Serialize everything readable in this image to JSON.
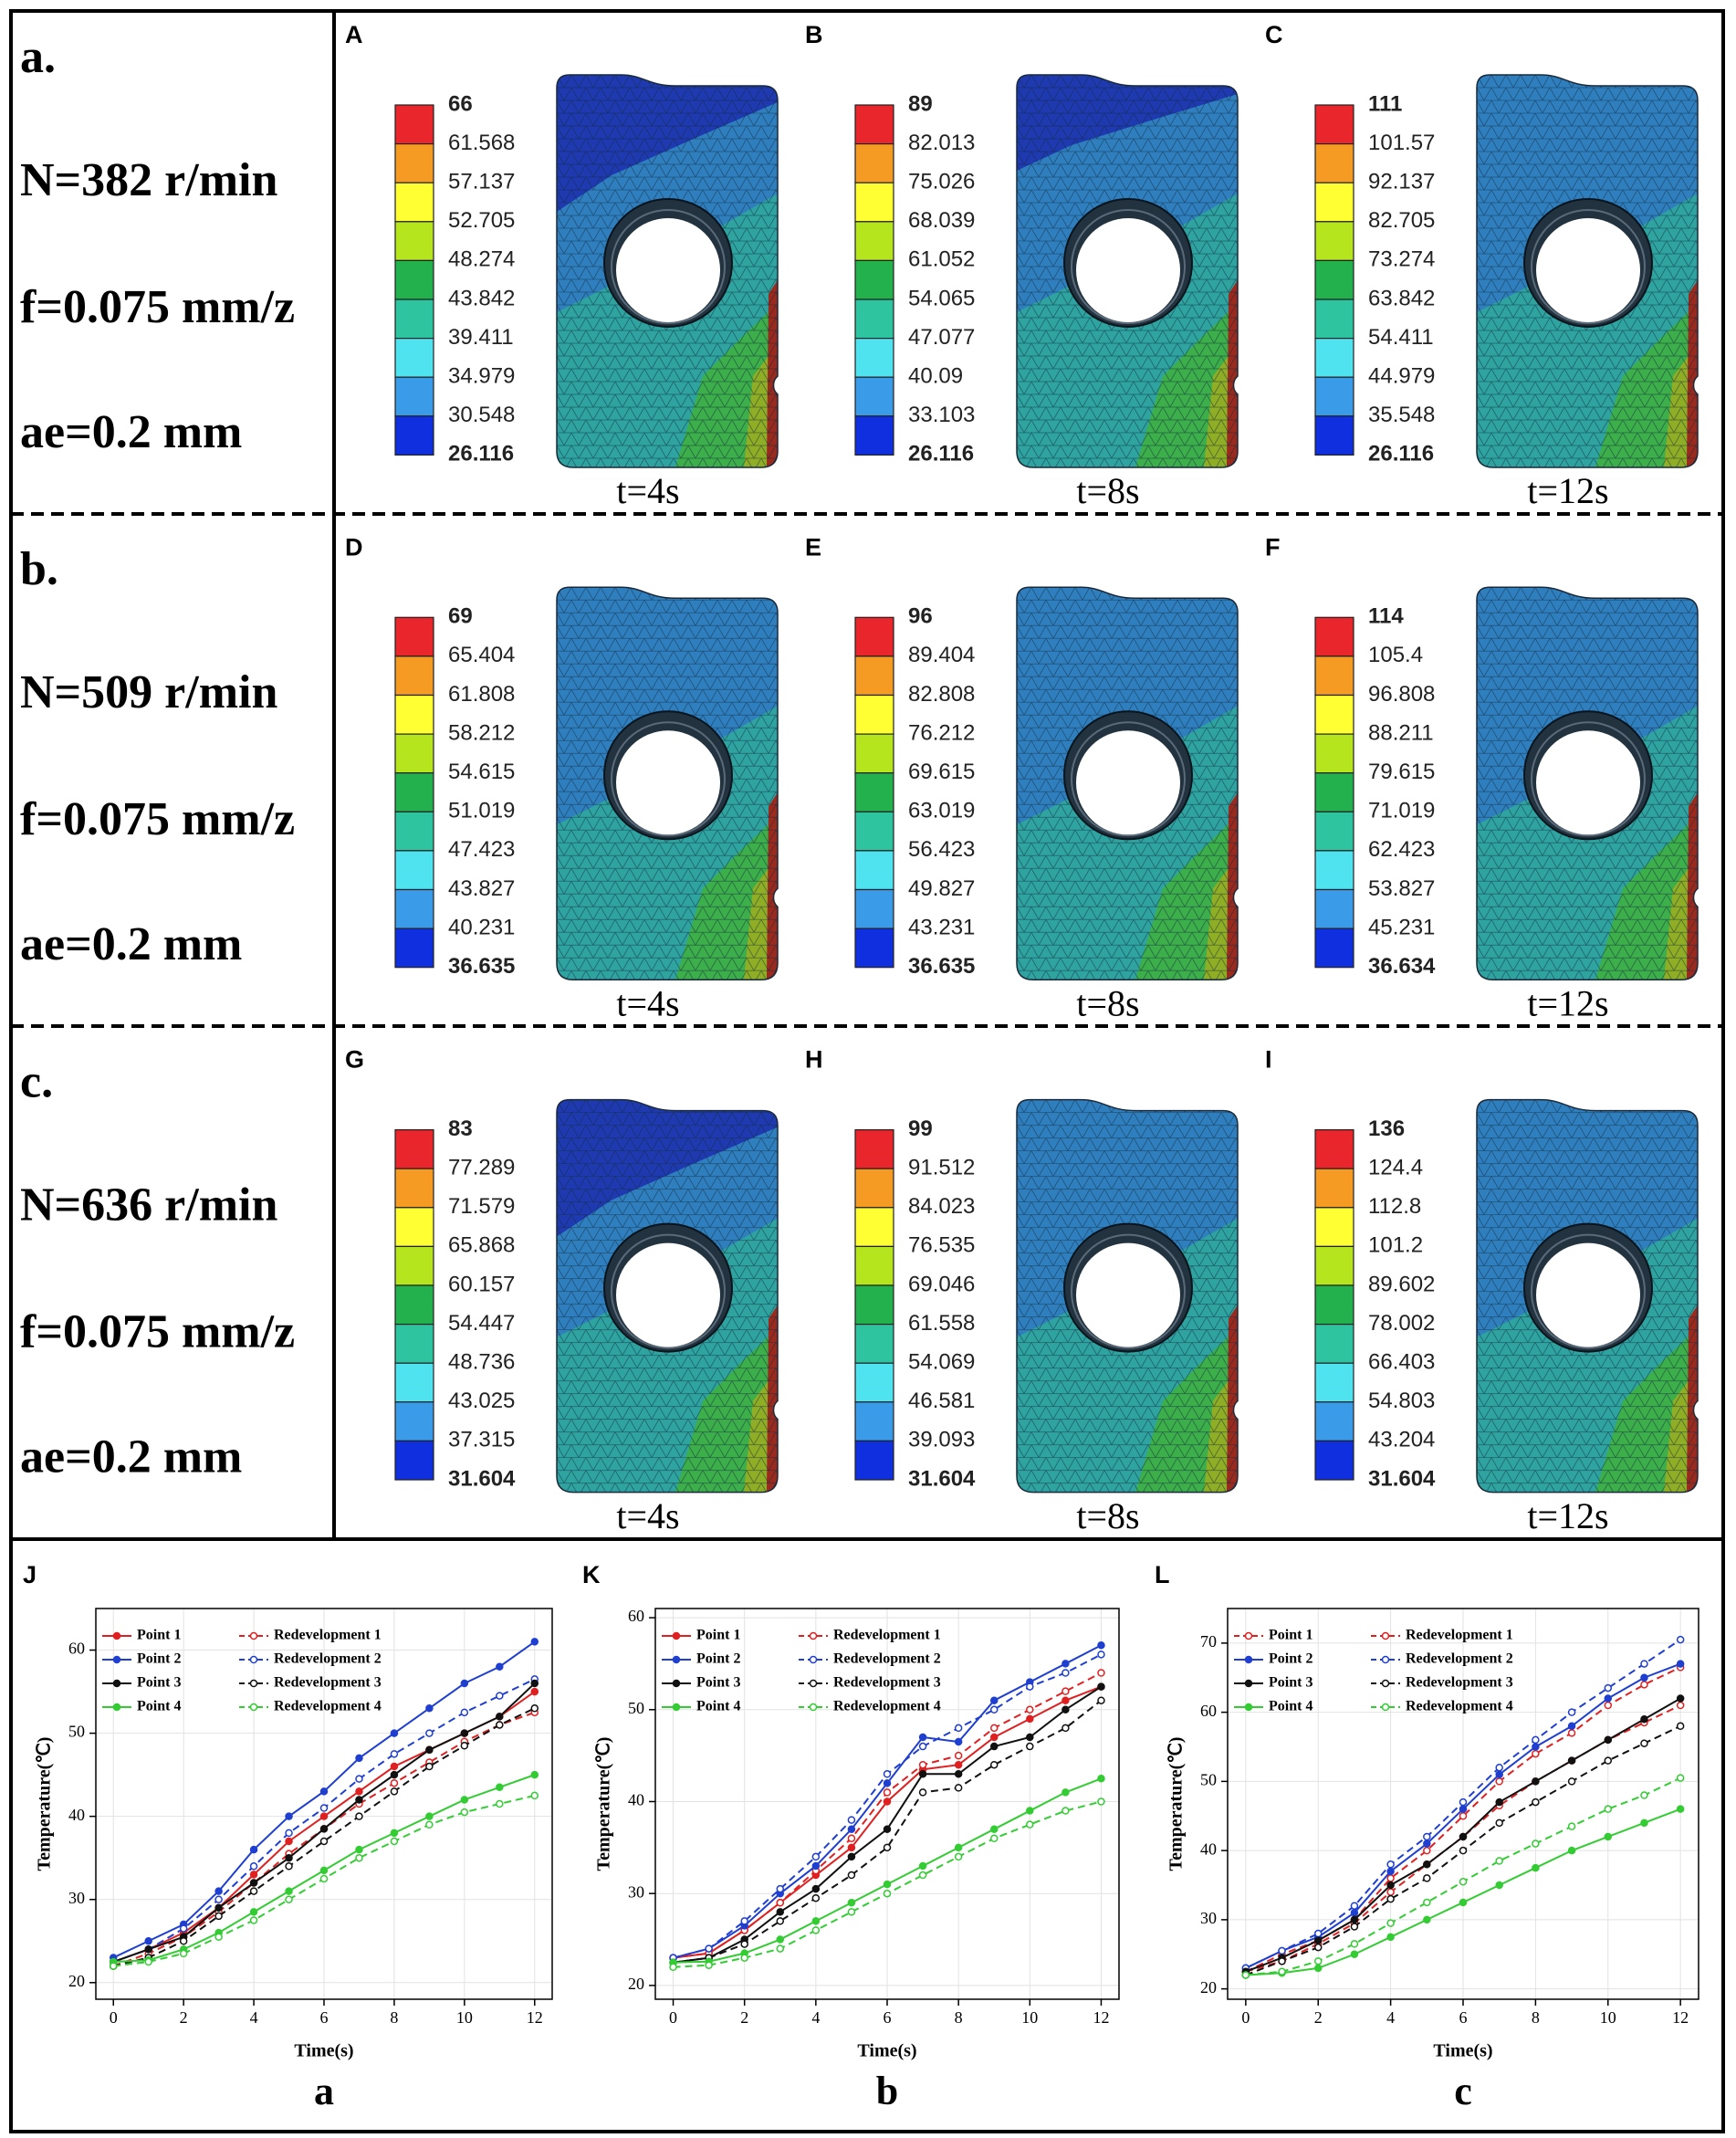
{
  "rows": [
    {
      "label": "a.",
      "params": [
        "N=382 r/min",
        "f=0.075 mm/z",
        "ae=0.2 mm"
      ],
      "panels": [
        {
          "letter": "A",
          "legend": [
            "66",
            "61.568",
            "57.137",
            "52.705",
            "48.274",
            "43.842",
            "39.411",
            "34.979",
            "30.548",
            "26.116"
          ],
          "time": "t=4s"
        },
        {
          "letter": "B",
          "legend": [
            "89",
            "82.013",
            "75.026",
            "68.039",
            "61.052",
            "54.065",
            "47.077",
            "40.09",
            "33.103",
            "26.116"
          ],
          "time": "t=8s"
        },
        {
          "letter": "C",
          "legend": [
            "111",
            "101.57",
            "92.137",
            "82.705",
            "73.274",
            "63.842",
            "54.411",
            "44.979",
            "35.548",
            "26.116"
          ],
          "time": "t=12s"
        }
      ]
    },
    {
      "label": "b.",
      "params": [
        "N=509 r/min",
        "f=0.075 mm/z",
        "ae=0.2 mm"
      ],
      "panels": [
        {
          "letter": "D",
          "legend": [
            "69",
            "65.404",
            "61.808",
            "58.212",
            "54.615",
            "51.019",
            "47.423",
            "43.827",
            "40.231",
            "36.635"
          ],
          "time": "t=4s"
        },
        {
          "letter": "E",
          "legend": [
            "96",
            "89.404",
            "82.808",
            "76.212",
            "69.615",
            "63.019",
            "56.423",
            "49.827",
            "43.231",
            "36.635"
          ],
          "time": "t=8s"
        },
        {
          "letter": "F",
          "legend": [
            "114",
            "105.4",
            "96.808",
            "88.211",
            "79.615",
            "71.019",
            "62.423",
            "53.827",
            "45.231",
            "36.634"
          ],
          "time": "t=12s"
        }
      ]
    },
    {
      "label": "c.",
      "params": [
        "N=636 r/min",
        "f=0.075 mm/z",
        "ae=0.2 mm"
      ],
      "panels": [
        {
          "letter": "G",
          "legend": [
            "83",
            "77.289",
            "71.579",
            "65.868",
            "60.157",
            "54.447",
            "48.736",
            "43.025",
            "37.315",
            "31.604"
          ],
          "time": "t=4s"
        },
        {
          "letter": "H",
          "legend": [
            "99",
            "91.512",
            "84.023",
            "76.535",
            "69.046",
            "61.558",
            "54.069",
            "46.581",
            "39.093",
            "31.604"
          ],
          "time": "t=8s"
        },
        {
          "letter": "I",
          "legend": [
            "136",
            "124.4",
            "112.8",
            "101.2",
            "89.602",
            "78.002",
            "66.403",
            "54.803",
            "43.204",
            "31.604"
          ],
          "time": "t=12s"
        }
      ]
    }
  ],
  "chart_data": [
    {
      "type": "line",
      "letter": "J",
      "caption": "a",
      "xlabel": "Time(s)",
      "ylabel": "Temperature(℃)",
      "x": [
        0,
        1,
        2,
        3,
        4,
        5,
        6,
        7,
        8,
        9,
        10,
        11,
        12
      ],
      "xlim": [
        -0.5,
        12.5
      ],
      "xticks": [
        0,
        2,
        4,
        6,
        8,
        10,
        12
      ],
      "ylim": [
        18,
        65
      ],
      "yticks": [
        20,
        30,
        40,
        50,
        60
      ],
      "grid": true,
      "legend": "upper left",
      "series": [
        {
          "name": "Point 1",
          "color": "#e02020",
          "dashed": false,
          "values": [
            22.5,
            24,
            26,
            29,
            33,
            37,
            40,
            43,
            46,
            48,
            50,
            52,
            55
          ]
        },
        {
          "name": "Redevelopment 1",
          "color": "#e02020",
          "dashed": true,
          "values": [
            22,
            23.5,
            25.5,
            28.5,
            32,
            35.5,
            38.5,
            41.5,
            44,
            46.5,
            49,
            51,
            52.5
          ]
        },
        {
          "name": "Point 2",
          "color": "#1f3fd0",
          "dashed": false,
          "values": [
            23,
            25,
            27,
            31,
            36,
            40,
            43,
            47,
            50,
            53,
            56,
            58,
            61
          ]
        },
        {
          "name": "Redevelopment 2",
          "color": "#1f3fd0",
          "dashed": true,
          "values": [
            22.5,
            24,
            26.5,
            30,
            34,
            38,
            41,
            44.5,
            47.5,
            50,
            52.5,
            54.5,
            56.5
          ]
        },
        {
          "name": "Point 3",
          "color": "#111111",
          "dashed": false,
          "values": [
            22.5,
            24,
            25.5,
            29,
            32,
            35,
            38.5,
            42,
            45,
            48,
            50,
            52,
            56
          ]
        },
        {
          "name": "Redevelopment 3",
          "color": "#111111",
          "dashed": true,
          "values": [
            22,
            23,
            25,
            28,
            31,
            34,
            37,
            40,
            43,
            46,
            48.5,
            51,
            53
          ]
        },
        {
          "name": "Point 4",
          "color": "#33cc33",
          "dashed": false,
          "values": [
            22.5,
            22.7,
            24,
            26,
            28.5,
            31,
            33.5,
            36,
            38,
            40,
            42,
            43.5,
            45
          ]
        },
        {
          "name": "Redevelopment 4",
          "color": "#33cc33",
          "dashed": true,
          "values": [
            22,
            22.5,
            23.5,
            25.5,
            27.5,
            30,
            32.5,
            35,
            37,
            39,
            40.5,
            41.5,
            42.5
          ]
        }
      ]
    },
    {
      "type": "line",
      "letter": "K",
      "caption": "b",
      "xlabel": "Time(s)",
      "ylabel": "Temperature(℃)",
      "x": [
        0,
        1,
        2,
        3,
        4,
        5,
        6,
        7,
        8,
        9,
        10,
        11,
        12
      ],
      "xlim": [
        -0.5,
        12.5
      ],
      "xticks": [
        0,
        2,
        4,
        6,
        8,
        10,
        12
      ],
      "ylim": [
        18.5,
        61
      ],
      "yticks": [
        20,
        30,
        40,
        50,
        60
      ],
      "grid": true,
      "legend": "upper left",
      "series": [
        {
          "name": "Point 1",
          "color": "#e02020",
          "dashed": false,
          "values": [
            23,
            23.5,
            26,
            29,
            32,
            35,
            40,
            43.5,
            44,
            47,
            49,
            51,
            52.5
          ]
        },
        {
          "name": "Redevelopment 1",
          "color": "#e02020",
          "dashed": true,
          "values": [
            23,
            23.5,
            26,
            29,
            32.5,
            36,
            41,
            44,
            45,
            48,
            50,
            52,
            54
          ]
        },
        {
          "name": "Point 2",
          "color": "#1f3fd0",
          "dashed": false,
          "values": [
            23,
            24,
            26.5,
            30,
            33,
            37,
            42,
            47,
            46.5,
            51,
            53,
            55,
            57
          ]
        },
        {
          "name": "Redevelopment 2",
          "color": "#1f3fd0",
          "dashed": true,
          "values": [
            23,
            24,
            27,
            30.5,
            34,
            38,
            43,
            46,
            48,
            50,
            52.5,
            54,
            56
          ]
        },
        {
          "name": "Point 3",
          "color": "#111111",
          "dashed": false,
          "values": [
            22.5,
            23,
            25,
            28,
            30.5,
            34,
            37,
            43,
            43,
            46,
            47,
            50,
            52.5
          ]
        },
        {
          "name": "Redevelopment 3",
          "color": "#111111",
          "dashed": true,
          "values": [
            22.5,
            23,
            24.5,
            27,
            29.5,
            32,
            35,
            41,
            41.5,
            44,
            46,
            48,
            51
          ]
        },
        {
          "name": "Point 4",
          "color": "#33cc33",
          "dashed": false,
          "values": [
            22.5,
            22.6,
            23.5,
            25,
            27,
            29,
            31,
            33,
            35,
            37,
            39,
            41,
            42.5
          ]
        },
        {
          "name": "Redevelopment 4",
          "color": "#33cc33",
          "dashed": true,
          "values": [
            22,
            22.2,
            23,
            24,
            26,
            28,
            30,
            32,
            34,
            36,
            37.5,
            39,
            40
          ]
        }
      ]
    },
    {
      "type": "line",
      "letter": "L",
      "caption": "c",
      "xlabel": "Time(s)",
      "ylabel": "Temperature(℃)",
      "x": [
        0,
        1,
        2,
        3,
        4,
        5,
        6,
        7,
        8,
        9,
        10,
        11,
        12
      ],
      "xlim": [
        -0.5,
        12.5
      ],
      "xticks": [
        0,
        2,
        4,
        6,
        8,
        10,
        12
      ],
      "ylim": [
        18.5,
        75
      ],
      "yticks": [
        20,
        30,
        40,
        50,
        60,
        70
      ],
      "grid": true,
      "legend": "upper left",
      "series": [
        {
          "name": "Point 1",
          "color": "#e02020",
          "dashed": true,
          "values": [
            22.5,
            25,
            27,
            30,
            36,
            40,
            45,
            50,
            54,
            57,
            61,
            64,
            66.5
          ]
        },
        {
          "name": "Redevelopment 1",
          "color": "#e02020",
          "dashed": true,
          "values": [
            22.5,
            24,
            26.5,
            29.5,
            34,
            38,
            42,
            46.5,
            50,
            53,
            56,
            58.5,
            61
          ]
        },
        {
          "name": "Point 2",
          "color": "#1f3fd0",
          "dashed": false,
          "values": [
            23,
            25.5,
            27.5,
            31,
            37,
            41,
            46,
            51,
            55,
            58,
            62,
            65,
            67
          ]
        },
        {
          "name": "Redevelopment 2",
          "color": "#1f3fd0",
          "dashed": true,
          "values": [
            23,
            25.5,
            28,
            32,
            38,
            42,
            47,
            52,
            56,
            60,
            63.5,
            67,
            70.5
          ]
        },
        {
          "name": "Point 3",
          "color": "#111111",
          "dashed": false,
          "values": [
            22.5,
            24.5,
            27,
            30,
            35,
            38,
            42,
            47,
            50,
            53,
            56,
            59,
            62
          ]
        },
        {
          "name": "Redevelopment 3",
          "color": "#111111",
          "dashed": true,
          "values": [
            22,
            24,
            26,
            29,
            33,
            36,
            40,
            44,
            47,
            50,
            53,
            55.5,
            58
          ]
        },
        {
          "name": "Point 4",
          "color": "#33cc33",
          "dashed": false,
          "values": [
            22,
            22.3,
            23,
            25,
            27.5,
            30,
            32.5,
            35,
            37.5,
            40,
            42,
            44,
            46
          ]
        },
        {
          "name": "Redevelopment 4",
          "color": "#33cc33",
          "dashed": true,
          "values": [
            22,
            22.5,
            24,
            26.5,
            29.5,
            32.5,
            35.5,
            38.5,
            41,
            43.5,
            46,
            48,
            50.5
          ]
        }
      ]
    }
  ]
}
